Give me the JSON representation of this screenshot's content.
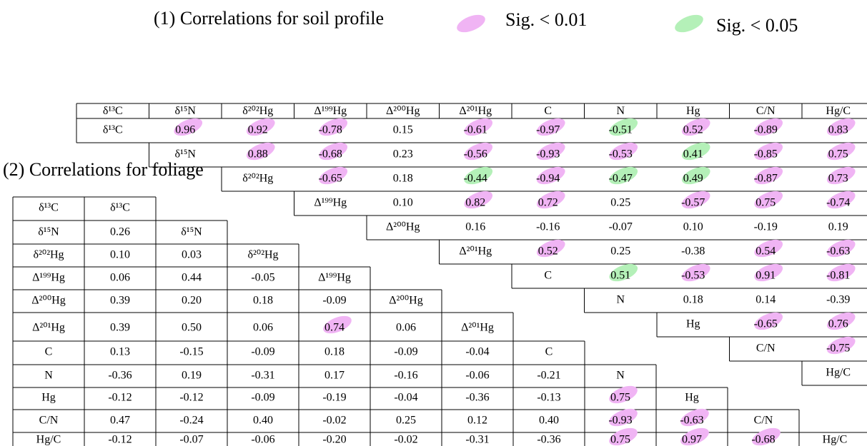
{
  "legend": [
    {
      "label": "Sig. < 0.01",
      "color": "#f0b4f4"
    },
    {
      "label": "Sig. < 0.05",
      "color": "#b4f0b8"
    }
  ],
  "soil": {
    "title": "(1) Correlations for soil profile",
    "columns": [
      "δ¹³C",
      "δ¹⁵N",
      "δ²⁰²Hg",
      "Δ¹⁹⁹Hg",
      "Δ²⁰⁰Hg",
      "Δ²⁰¹Hg",
      "C",
      "N",
      "Hg",
      "C/N",
      "Hg/C"
    ],
    "rows": [
      {
        "values": [
          "0.96",
          "0.92",
          "-0.78",
          "0.15",
          "-0.61",
          "-0.97",
          "-0.51",
          "0.52",
          "-0.89",
          "0.83"
        ],
        "sig": [
          0,
          0,
          0,
          null,
          0,
          0,
          1,
          0,
          0,
          0
        ]
      },
      {
        "values": [
          "0.88",
          "-0.68",
          "0.23",
          "-0.56",
          "-0.93",
          "-0.53",
          "0.41",
          "-0.85",
          "0.75"
        ],
        "sig": [
          0,
          0,
          null,
          0,
          0,
          0,
          1,
          0,
          0
        ]
      },
      {
        "values": [
          "-0.65",
          "0.18",
          "-0.44",
          "-0.94",
          "-0.47",
          "0.49",
          "-0.87",
          "0.73"
        ],
        "sig": [
          0,
          null,
          1,
          0,
          1,
          1,
          0,
          0
        ]
      },
      {
        "values": [
          "0.10",
          "0.82",
          "0.72",
          "0.25",
          "-0.57",
          "0.75",
          "-0.74"
        ],
        "sig": [
          null,
          0,
          0,
          null,
          0,
          0,
          0
        ]
      },
      {
        "values": [
          "0.16",
          "-0.16",
          "-0.07",
          "0.10",
          "-0.19",
          "0.19"
        ],
        "sig": [
          null,
          null,
          null,
          null,
          null,
          null
        ]
      },
      {
        "values": [
          "0.52",
          "0.25",
          "-0.38",
          "0.54",
          "-0.63"
        ],
        "sig": [
          0,
          null,
          null,
          0,
          0
        ]
      },
      {
        "values": [
          "0.51",
          "-0.53",
          "0.91",
          "-0.81"
        ],
        "sig": [
          1,
          0,
          0,
          0
        ]
      },
      {
        "values": [
          "0.18",
          "0.14",
          "-0.39"
        ],
        "sig": [
          null,
          null,
          null
        ]
      },
      {
        "values": [
          "-0.65",
          "0.76"
        ],
        "sig": [
          0,
          0
        ]
      },
      {
        "values": [
          "-0.75"
        ],
        "sig": [
          0
        ]
      },
      {
        "values": [],
        "sig": []
      }
    ]
  },
  "foliage": {
    "title": "(2) Correlations for foliage",
    "labels": [
      "δ¹³C",
      "δ¹⁵N",
      "δ²⁰²Hg",
      "Δ¹⁹⁹Hg",
      "Δ²⁰⁰Hg",
      "Δ²⁰¹Hg",
      "C",
      "N",
      "Hg",
      "C/N",
      "Hg/C"
    ],
    "rows": [
      {
        "values": [],
        "sig": []
      },
      {
        "values": [
          "0.26"
        ],
        "sig": [
          null
        ]
      },
      {
        "values": [
          "0.10",
          "0.03"
        ],
        "sig": [
          null,
          null
        ]
      },
      {
        "values": [
          "0.06",
          "0.44",
          "-0.05"
        ],
        "sig": [
          null,
          null,
          null
        ]
      },
      {
        "values": [
          "0.39",
          "0.20",
          "0.18",
          "-0.09"
        ],
        "sig": [
          null,
          null,
          null,
          null
        ]
      },
      {
        "values": [
          "0.39",
          "0.50",
          "0.06",
          "0.74",
          "0.06"
        ],
        "sig": [
          null,
          null,
          null,
          0,
          null
        ]
      },
      {
        "values": [
          "0.13",
          "-0.15",
          "-0.09",
          "0.18",
          "-0.09",
          "-0.04"
        ],
        "sig": [
          null,
          null,
          null,
          null,
          null,
          null
        ]
      },
      {
        "values": [
          "-0.36",
          "0.19",
          "-0.31",
          "0.17",
          "-0.16",
          "-0.06",
          "-0.21"
        ],
        "sig": [
          null,
          null,
          null,
          null,
          null,
          null,
          null
        ]
      },
      {
        "values": [
          "-0.12",
          "-0.12",
          "-0.09",
          "-0.19",
          "-0.04",
          "-0.36",
          "-0.13",
          "0.75"
        ],
        "sig": [
          null,
          null,
          null,
          null,
          null,
          null,
          null,
          0
        ]
      },
      {
        "values": [
          "0.47",
          "-0.24",
          "0.40",
          "-0.02",
          "0.25",
          "0.12",
          "0.40",
          "-0.93",
          "-0.63"
        ],
        "sig": [
          null,
          null,
          null,
          null,
          null,
          null,
          null,
          0,
          0
        ]
      },
      {
        "values": [
          "-0.12",
          "-0.07",
          "-0.06",
          "-0.20",
          "-0.02",
          "-0.31",
          "-0.36",
          "0.75",
          "0.97",
          "-0.68"
        ],
        "sig": [
          null,
          null,
          null,
          null,
          null,
          null,
          null,
          0,
          0,
          0
        ]
      }
    ]
  }
}
